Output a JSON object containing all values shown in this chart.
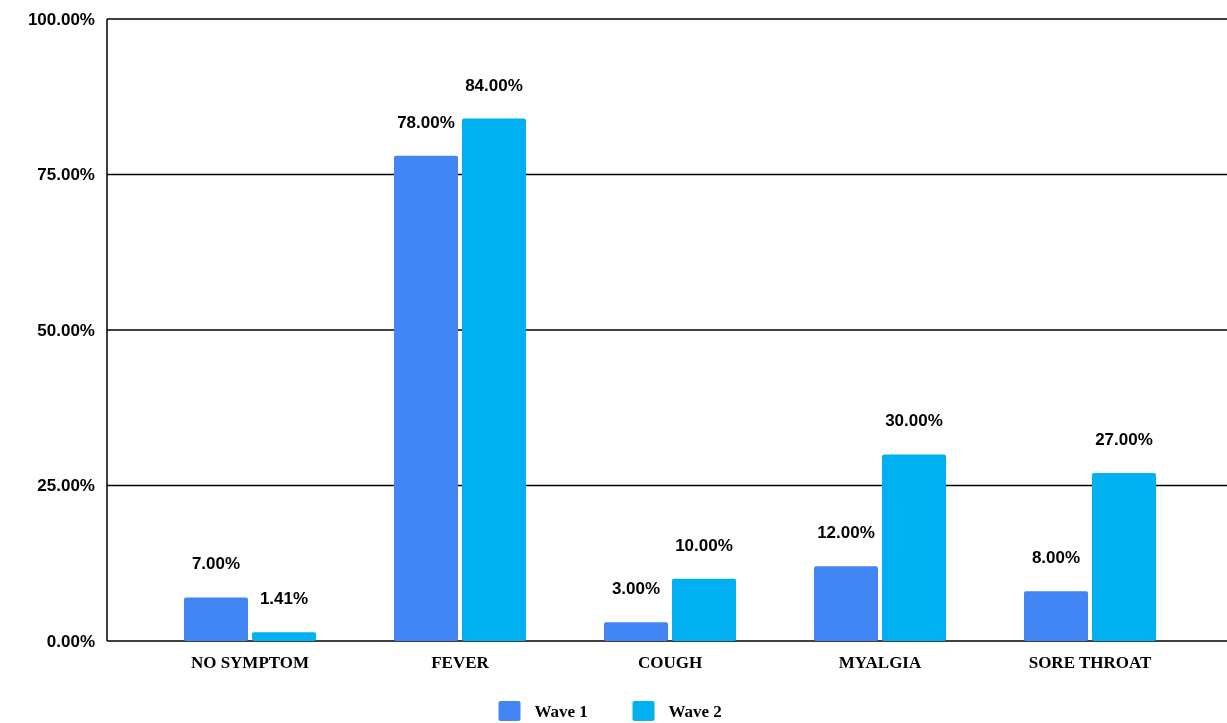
{
  "chart_data": {
    "type": "bar",
    "categories": [
      "NO SYMPTOM",
      "FEVER",
      "COUGH",
      "MYALGIA",
      "SORE THROAT"
    ],
    "series": [
      {
        "name": "Wave 1",
        "color": "#4285f4",
        "values": [
          7,
          78,
          3,
          12,
          8
        ],
        "value_labels": [
          "7.00%",
          "78.00%",
          "3.00%",
          "12.00%",
          "8.00%"
        ]
      },
      {
        "name": "Wave 2",
        "color": "#00b0f0",
        "values": [
          1.41,
          84,
          10,
          30,
          27
        ],
        "value_labels": [
          "1.41%",
          "84.00%",
          "10.00%",
          "30.00%",
          "27.00%"
        ]
      }
    ],
    "ylim": [
      0,
      100
    ],
    "yticks": [
      {
        "value": 0,
        "label": "0.00%"
      },
      {
        "value": 25,
        "label": "25.00%"
      },
      {
        "value": 50,
        "label": "50.00%"
      },
      {
        "value": 75,
        "label": "75.00%"
      },
      {
        "value": 100,
        "label": "100.00%"
      }
    ],
    "grid": "y",
    "legend": "bottom"
  }
}
